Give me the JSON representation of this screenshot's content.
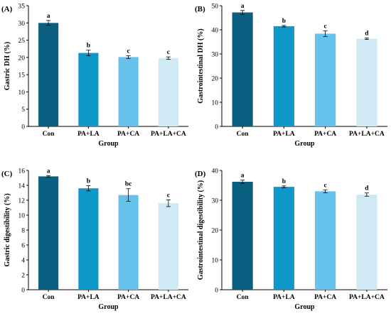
{
  "colors": [
    "#0a5f80",
    "#0e97c9",
    "#66c2ea",
    "#cfeaf4"
  ],
  "chart_data": [
    {
      "type": "bar",
      "panel": "(A)",
      "categories": [
        "Con",
        "PA+LA",
        "PA+CA",
        "PA+LA+CA"
      ],
      "values": [
        30.0,
        21.3,
        20.1,
        19.8
      ],
      "errors": [
        0.7,
        0.8,
        0.4,
        0.35
      ],
      "significance": [
        "a",
        "b",
        "c",
        "c"
      ],
      "xlabel": "Group",
      "ylabel": "Gastric DH (%)",
      "ylim": [
        0,
        35
      ],
      "yticks": [
        0,
        5,
        10,
        15,
        20,
        25,
        30,
        35
      ]
    },
    {
      "type": "bar",
      "panel": "(B)",
      "categories": [
        "Con",
        "PA+LA",
        "PA+CA",
        "PA+LA+CA"
      ],
      "values": [
        47.2,
        41.5,
        38.4,
        36.3
      ],
      "errors": [
        0.8,
        0.3,
        1.2,
        0.3
      ],
      "significance": [
        "a",
        "b",
        "c",
        "d"
      ],
      "xlabel": "Group",
      "ylabel": "Gastrointestinal DH (%)",
      "ylim": [
        0,
        50
      ],
      "yticks": [
        0,
        10,
        20,
        30,
        40,
        50
      ]
    },
    {
      "type": "bar",
      "panel": "(C)",
      "categories": [
        "Con",
        "PA+LA",
        "PA+CA",
        "PA+LA+CA"
      ],
      "values": [
        15.2,
        13.6,
        12.7,
        11.6
      ],
      "errors": [
        0.1,
        0.35,
        0.85,
        0.45
      ],
      "significance": [
        "a",
        "b",
        "bc",
        "c"
      ],
      "xlabel": "Group",
      "ylabel": "Gastric digestibility (%)",
      "ylim": [
        0,
        16
      ],
      "yticks": [
        0,
        2,
        4,
        6,
        8,
        10,
        12,
        14,
        16
      ]
    },
    {
      "type": "bar",
      "panel": "(D)",
      "categories": [
        "Con",
        "PA+LA",
        "PA+CA",
        "PA+LA+CA"
      ],
      "values": [
        36.2,
        34.5,
        33.0,
        31.9
      ],
      "errors": [
        0.55,
        0.3,
        0.5,
        0.55
      ],
      "significance": [
        "a",
        "b",
        "c",
        "d"
      ],
      "xlabel": "Group",
      "ylabel": "Gastrointestinal digestibility (%)",
      "ylim": [
        0,
        40
      ],
      "yticks": [
        0,
        10,
        20,
        30,
        40
      ]
    }
  ]
}
